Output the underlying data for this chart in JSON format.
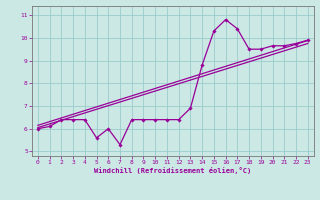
{
  "xlabel": "Windchill (Refroidissement éolien,°C)",
  "ylabel": "",
  "background_color": "#cce8e4",
  "grid_color": "#99cccc",
  "line_color": "#990099",
  "xlim": [
    -0.5,
    23.5
  ],
  "ylim": [
    4.8,
    11.4
  ],
  "yticks": [
    5,
    6,
    7,
    8,
    9,
    10,
    11
  ],
  "xticks": [
    0,
    1,
    2,
    3,
    4,
    5,
    6,
    7,
    8,
    9,
    10,
    11,
    12,
    13,
    14,
    15,
    16,
    17,
    18,
    19,
    20,
    21,
    22,
    23
  ],
  "series1_x": [
    0,
    1,
    2,
    3,
    4,
    5,
    6,
    7,
    8,
    9,
    10,
    11,
    12,
    13,
    14,
    15,
    16,
    17,
    18,
    19,
    20,
    21,
    22,
    23
  ],
  "series1_y": [
    6.0,
    6.1,
    6.4,
    6.4,
    6.4,
    5.6,
    6.0,
    5.3,
    6.4,
    6.4,
    6.4,
    6.4,
    6.4,
    6.9,
    8.8,
    10.3,
    10.8,
    10.4,
    9.5,
    9.5,
    9.65,
    9.65,
    9.75,
    9.9
  ],
  "line2_x": [
    0,
    23
  ],
  "line2_y": [
    6.05,
    9.75
  ],
  "line3_x": [
    0,
    23
  ],
  "line3_y": [
    6.15,
    9.88
  ]
}
